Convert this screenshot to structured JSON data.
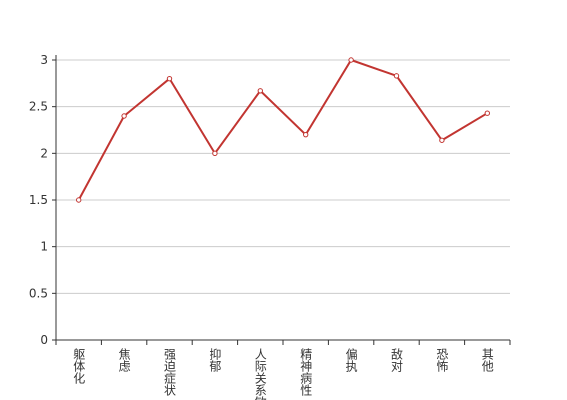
{
  "chart_data": {
    "type": "line",
    "categories": [
      "躯体化",
      "焦虑",
      "强迫症状",
      "抑郁",
      "人际关系敏感",
      "精神病性",
      "偏执",
      "敌对",
      "恐怖",
      "其他"
    ],
    "values": [
      1.5,
      2.4,
      2.8,
      2.0,
      2.67,
      2.2,
      3.0,
      2.83,
      2.14,
      2.43
    ],
    "color": "#c23531",
    "ylim": [
      0,
      3
    ],
    "yticks": [
      0,
      0.5,
      1,
      1.5,
      2,
      2.5,
      3
    ],
    "grid": true
  }
}
